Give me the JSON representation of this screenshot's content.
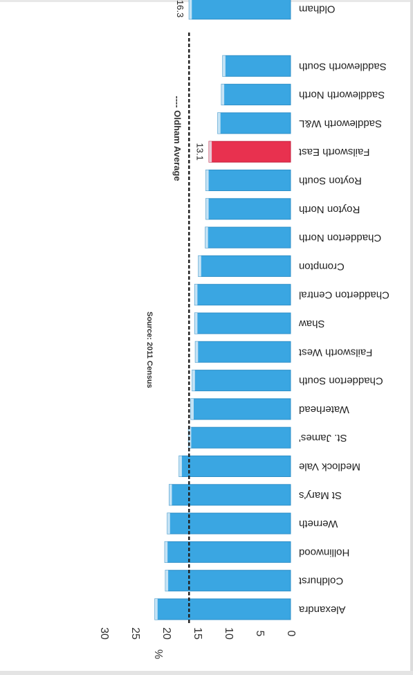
{
  "chart_data": {
    "type": "bar",
    "orientation": "horizontal",
    "rotated": "180deg",
    "ylabel": "%",
    "source": "Source: 2011 Census",
    "ylim": [
      0,
      30
    ],
    "yticks": [
      0,
      5,
      10,
      15,
      20,
      25,
      30
    ],
    "grid": false,
    "categories": [
      "Alexandra",
      "Coldhurst",
      "Hollinwood",
      "Werneth",
      "St Mary's",
      "Medlock Vale",
      "St. James'",
      "Waterhead",
      "Chadderton South",
      "Failsworth West",
      "Shaw",
      "Chadderton Central",
      "Crompton",
      "Chadderton North",
      "Royton North",
      "Royton South",
      "Failsworth East",
      "Saddleworth W&L",
      "Saddleworth North",
      "Saddleworth South",
      "",
      "Oldham"
    ],
    "values": [
      21.8,
      20.1,
      20.2,
      19.8,
      19.5,
      17.9,
      16.4,
      16.0,
      15.8,
      15.3,
      15.4,
      15.4,
      14.8,
      13.7,
      13.6,
      13.6,
      13.1,
      11.7,
      11.1,
      10.9,
      null,
      16.3
    ],
    "highlight": {
      "category": "Failsworth East",
      "color": "#e8314f"
    },
    "bar_color": "#3aa6e2",
    "data_labels": [
      {
        "category": "Failsworth East",
        "text": "13.1"
      },
      {
        "category": "Oldham",
        "text": "16.3"
      }
    ],
    "reference_line": {
      "label": "Oldham Average",
      "value": 16.3,
      "style": "dashed"
    }
  }
}
